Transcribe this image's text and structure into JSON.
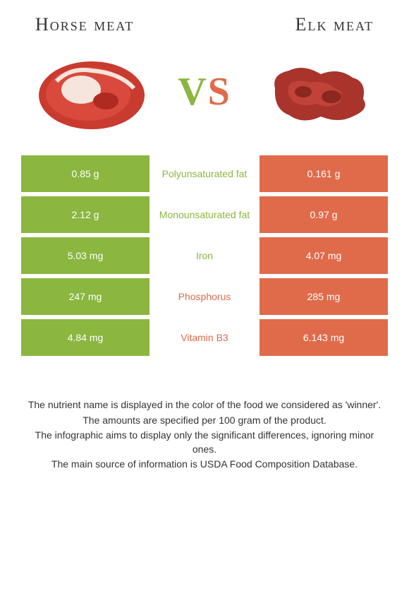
{
  "header": {
    "left_title": "Horse meat",
    "right_title": "Elk meat"
  },
  "vs": {
    "v": "V",
    "s": "S"
  },
  "colors": {
    "green": "#8bb63f",
    "orange": "#e06b4a",
    "background": "#ffffff",
    "text": "#333333"
  },
  "rows": [
    {
      "left": "0.85 g",
      "label": "Polyunsaturated fat",
      "right": "0.161 g",
      "winner": "green"
    },
    {
      "left": "2.12 g",
      "label": "Monounsaturated fat",
      "right": "0.97 g",
      "winner": "green"
    },
    {
      "left": "5.03 mg",
      "label": "Iron",
      "right": "4.07 mg",
      "winner": "green"
    },
    {
      "left": "247 mg",
      "label": "Phosphorus",
      "right": "285 mg",
      "winner": "orange"
    },
    {
      "left": "4.84 mg",
      "label": "Vitamin B3",
      "right": "6.143 mg",
      "winner": "orange"
    }
  ],
  "footer": {
    "line1": "The nutrient name is displayed in the color of the food we considered as 'winner'.",
    "line2": "The amounts are specified per 100 gram of the product.",
    "line3": "The infographic aims to display only the significant differences, ignoring minor ones.",
    "line4": "The main source of information is USDA Food Composition Database."
  }
}
